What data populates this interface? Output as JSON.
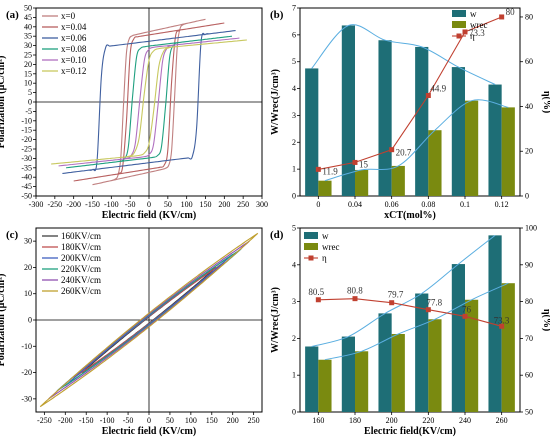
{
  "chart_data": [
    {
      "panel": "(a)",
      "type": "line",
      "xlabel": "Electric field (KV/cm)",
      "ylabel": "Polarization (μC/cm²)",
      "xlim": [
        -300,
        300
      ],
      "ylim": [
        -50,
        50
      ],
      "xticks": [
        -300,
        -250,
        -200,
        -150,
        -100,
        -50,
        0,
        50,
        100,
        150,
        200,
        250,
        300
      ],
      "yticks": [
        -50,
        -45,
        -40,
        -35,
        -30,
        -25,
        -20,
        -15,
        -10,
        -5,
        0,
        5,
        10,
        15,
        20,
        25,
        30,
        35,
        40,
        45,
        50
      ],
      "legend_position": "top-left",
      "series": [
        {
          "name": "x=0",
          "color": "#c08080",
          "emax": 150,
          "pmax": 44,
          "pr": 32,
          "ec": 68,
          "w": 8
        },
        {
          "name": "x=0.04",
          "color": "#b86060",
          "emax": 200,
          "pmax": 42,
          "pr": 32,
          "ec": 58,
          "w": 8
        },
        {
          "name": "x=0.06",
          "color": "#4060a0",
          "emax": 230,
          "pmax": 38,
          "pr": 26,
          "ec": 130,
          "w": 6
        },
        {
          "name": "x=0.08",
          "color": "#20a080",
          "emax": 220,
          "pmax": 35,
          "pr": 16,
          "ec": 45,
          "w": 10
        },
        {
          "name": "x=0.10",
          "color": "#b070c0",
          "emax": 240,
          "pmax": 34,
          "pr": 8,
          "ec": 25,
          "w": 12
        },
        {
          "name": "x=0.12",
          "color": "#c8c860",
          "emax": 260,
          "pmax": 33,
          "pr": 4,
          "ec": 15,
          "w": 14
        }
      ]
    },
    {
      "panel": "(b)",
      "type": "bar",
      "xlabel": "xCT(mol%)",
      "ylabel": "W/Wrec(J/cm³)",
      "y2label": "η(%)",
      "categories": [
        "0",
        "0.04",
        "0.06",
        "0.08",
        "0.1",
        "0.12"
      ],
      "ylim": [
        0,
        7
      ],
      "yticks": [
        0,
        1,
        2,
        3,
        4,
        5,
        6,
        7
      ],
      "y2lim": [
        0,
        84
      ],
      "y2ticks": [
        0,
        20,
        40,
        60,
        80
      ],
      "legend_position": "top-right",
      "series": [
        {
          "name": "w",
          "type": "bar",
          "color": "#1e6e76",
          "values": [
            4.75,
            6.35,
            5.8,
            5.55,
            4.8,
            4.15
          ]
        },
        {
          "name": "wrec",
          "type": "bar",
          "color": "#7a8a10",
          "values": [
            0.57,
            0.97,
            1.12,
            2.45,
            3.55,
            3.3
          ]
        },
        {
          "name": "η",
          "type": "line",
          "axis": "right",
          "color": "#c04030",
          "values": [
            11.9,
            15,
            20.7,
            44.9,
            73.3,
            80
          ]
        }
      ],
      "data_labels": [
        "11.9",
        "15",
        "20.7",
        "44.9",
        "73.3",
        "80"
      ]
    },
    {
      "panel": "(c)",
      "type": "line",
      "xlabel": "Electric field (KV/cm)",
      "ylabel": "Polarization (μC/cm²)",
      "xlim": [
        -270,
        270
      ],
      "ylim": [
        -35,
        35
      ],
      "xticks": [
        -250,
        -200,
        -150,
        -100,
        -50,
        0,
        50,
        100,
        150,
        200,
        250
      ],
      "yticks": [
        -30,
        -20,
        -10,
        0,
        10,
        20,
        30
      ],
      "legend_position": "top-left",
      "series": [
        {
          "name": "160KV/cm",
          "color": "#404040",
          "emax": 160,
          "pmax": 20,
          "pr": 1.2
        },
        {
          "name": "180KV/cm",
          "color": "#c05050",
          "emax": 180,
          "pmax": 22,
          "pr": 1.4
        },
        {
          "name": "200KV/cm",
          "color": "#4060c0",
          "emax": 200,
          "pmax": 25,
          "pr": 1.6
        },
        {
          "name": "220KV/cm",
          "color": "#20a080",
          "emax": 220,
          "pmax": 27,
          "pr": 1.9
        },
        {
          "name": "240KV/cm",
          "color": "#9050b0",
          "emax": 240,
          "pmax": 30,
          "pr": 2.2
        },
        {
          "name": "260KV/cm",
          "color": "#c0a030",
          "emax": 260,
          "pmax": 33,
          "pr": 2.6
        }
      ]
    },
    {
      "panel": "(d)",
      "type": "bar",
      "xlabel": "Electric field(KV/cm)",
      "ylabel": "W/Wrec(J/cm³)",
      "y2label": "η(%)",
      "categories": [
        "160",
        "180",
        "200",
        "220",
        "240",
        "260"
      ],
      "ylim": [
        0,
        5
      ],
      "yticks": [
        0,
        1,
        2,
        3,
        4,
        5
      ],
      "y2lim": [
        50,
        100
      ],
      "y2ticks": [
        50,
        60,
        70,
        80,
        90,
        100
      ],
      "legend_position": "top-left",
      "series": [
        {
          "name": "w",
          "type": "bar",
          "color": "#1e6e76",
          "values": [
            1.78,
            2.05,
            2.68,
            3.22,
            4.02,
            4.8
          ]
        },
        {
          "name": "wrec",
          "type": "bar",
          "color": "#7a8a10",
          "values": [
            1.42,
            1.65,
            2.12,
            2.52,
            3.05,
            3.5
          ]
        },
        {
          "name": "η",
          "type": "line",
          "axis": "right",
          "color": "#c04030",
          "values": [
            80.5,
            80.8,
            79.7,
            77.8,
            76,
            73.3
          ]
        }
      ],
      "data_labels": [
        "80.5",
        "80.8",
        "79.7",
        "77.8",
        "76",
        "73.3"
      ]
    }
  ]
}
